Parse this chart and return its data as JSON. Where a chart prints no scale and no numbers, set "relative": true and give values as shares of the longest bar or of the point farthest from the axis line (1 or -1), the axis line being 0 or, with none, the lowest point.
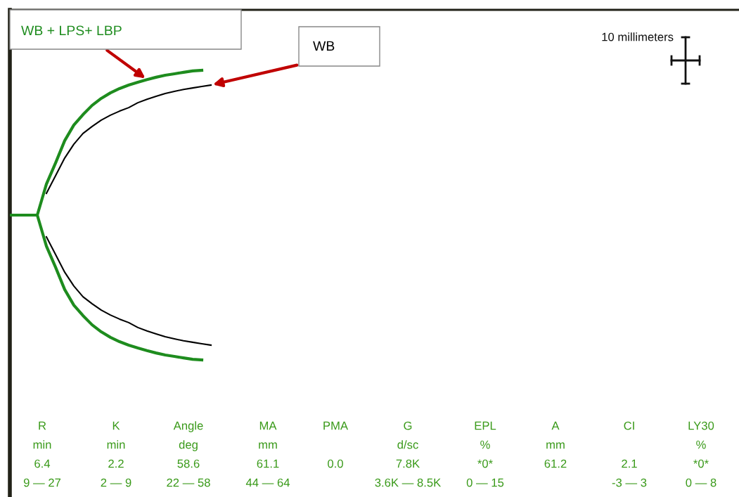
{
  "chart_data": {
    "type": "line",
    "relative": true,
    "tick_labels": false,
    "marker": "none",
    "line_style": "solid",
    "categories": [
      null,
      null,
      null,
      null,
      null,
      null,
      null,
      null,
      null,
      null,
      null,
      null,
      null,
      null,
      null,
      null,
      null,
      null,
      null,
      null,
      null,
      null,
      null
    ],
    "series": [
      {
        "name": "WB + LPS+ LBP",
        "color": "#1e8c1e",
        "values": [
          0.5,
          0.5,
          0.5,
          0.5,
          0.607,
          0.68,
          0.757,
          0.811,
          0.847,
          0.879,
          0.903,
          0.922,
          0.937,
          0.949,
          0.959,
          0.968,
          0.976,
          0.983,
          0.988,
          0.993,
          0.998,
          1,
          null
        ]
      },
      {
        "color": "#1e8c1e",
        "values": [
          0.5,
          0.5,
          0.5,
          0.5,
          0.393,
          0.32,
          0.243,
          0.189,
          0.153,
          0.121,
          0.097,
          0.078,
          0.063,
          0.051,
          0.041,
          0.032,
          0.024,
          0.017,
          0.012,
          0.007,
          0.002,
          0,
          null
        ]
      },
      {
        "name": "WB",
        "color": "#000000",
        "values": [
          null,
          null,
          null,
          null,
          0.575,
          0.636,
          0.697,
          0.745,
          0.782,
          0.806,
          0.828,
          0.845,
          0.859,
          0.871,
          0.888,
          0.9,
          0.91,
          0.92,
          0.927,
          0.934,
          0.939,
          0.944,
          0.949
        ]
      },
      {
        "color": "#000000",
        "values": [
          null,
          null,
          null,
          null,
          0.425,
          0.364,
          0.303,
          0.255,
          0.218,
          0.194,
          0.172,
          0.155,
          0.141,
          0.129,
          0.112,
          0.1,
          0.09,
          0.08,
          0.073,
          0.066,
          0.061,
          0.056,
          0.051
        ]
      }
    ],
    "annotations": [
      "10 millimeters",
      "R\nmin\n6.4\n9 — 27",
      "K\nmin\n2.2\n2 — 9",
      "Angle\ndeg\n58.6\n22 — 58",
      "MA\nmm\n61.1\n44 — 64",
      "PMA\n\n0.0\n",
      "G\nd/sc\n7.8K\n3.6K — 8.5K",
      "EPL\n%\n*0*\n0 — 15",
      "A\nmm\n61.2\n",
      "CI\n\n2.1\n-3 — 3",
      "LY30\n%\n*0*\n0 — 8"
    ]
  }
}
